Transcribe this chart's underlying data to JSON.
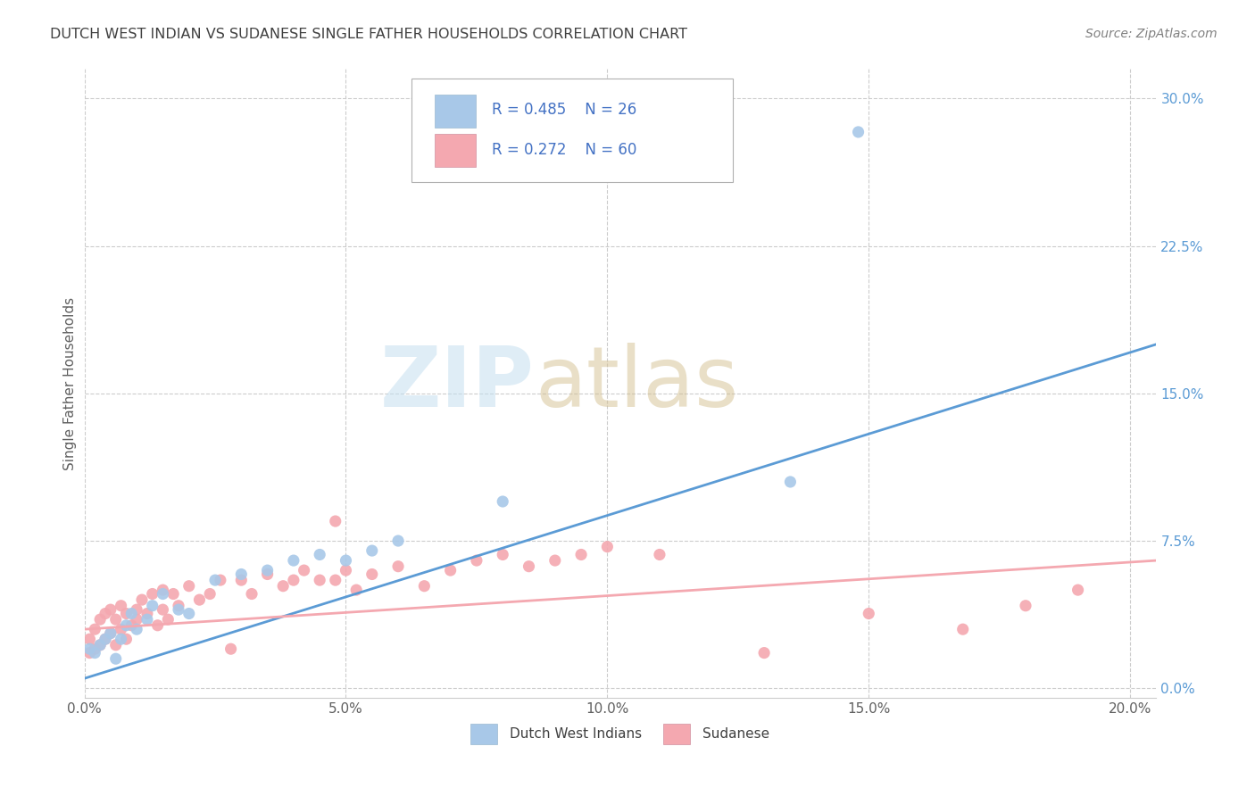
{
  "title": "DUTCH WEST INDIAN VS SUDANESE SINGLE FATHER HOUSEHOLDS CORRELATION CHART",
  "source": "Source: ZipAtlas.com",
  "ylabel": "Single Father Households",
  "xlim": [
    0.0,
    0.205
  ],
  "ylim": [
    -0.005,
    0.315
  ],
  "xticks": [
    0.0,
    0.05,
    0.1,
    0.15,
    0.2
  ],
  "yticks_right": [
    0.0,
    0.075,
    0.15,
    0.225,
    0.3
  ],
  "legend_labels": [
    "Dutch West Indians",
    "Sudanese"
  ],
  "legend_r_blue": "R = 0.485",
  "legend_n_blue": "N = 26",
  "legend_r_pink": "R = 0.272",
  "legend_n_pink": "N = 60",
  "blue_scatter_color": "#a8c8e8",
  "pink_scatter_color": "#f4a8b0",
  "line_blue_color": "#5b9bd5",
  "line_pink_color": "#f4a8b0",
  "legend_text_color": "#4472c4",
  "watermark_zip_color": "#c8dff0",
  "watermark_atlas_color": "#d8c8a0",
  "background_color": "#ffffff",
  "grid_color": "#cccccc",
  "title_color": "#404040",
  "source_color": "#808080",
  "ylabel_color": "#606060",
  "tick_color": "#5b9bd5",
  "xtick_color": "#606060",
  "blue_line_x0": 0.0,
  "blue_line_y0": 0.005,
  "blue_line_x1": 0.205,
  "blue_line_y1": 0.175,
  "pink_line_x0": 0.0,
  "pink_line_y0": 0.03,
  "pink_line_x1": 0.205,
  "pink_line_y1": 0.065,
  "blue_x": [
    0.001,
    0.002,
    0.003,
    0.004,
    0.005,
    0.006,
    0.007,
    0.008,
    0.009,
    0.01,
    0.012,
    0.013,
    0.015,
    0.018,
    0.02,
    0.025,
    0.03,
    0.035,
    0.04,
    0.045,
    0.05,
    0.055,
    0.06,
    0.08,
    0.135,
    0.148
  ],
  "blue_y": [
    0.02,
    0.018,
    0.022,
    0.025,
    0.028,
    0.015,
    0.025,
    0.032,
    0.038,
    0.03,
    0.035,
    0.042,
    0.048,
    0.04,
    0.038,
    0.055,
    0.058,
    0.06,
    0.065,
    0.068,
    0.065,
    0.07,
    0.075,
    0.095,
    0.105,
    0.283
  ],
  "pink_x": [
    0.001,
    0.001,
    0.002,
    0.002,
    0.003,
    0.003,
    0.004,
    0.004,
    0.005,
    0.005,
    0.006,
    0.006,
    0.007,
    0.007,
    0.008,
    0.008,
    0.009,
    0.01,
    0.01,
    0.011,
    0.012,
    0.013,
    0.014,
    0.015,
    0.015,
    0.016,
    0.017,
    0.018,
    0.02,
    0.022,
    0.024,
    0.026,
    0.028,
    0.03,
    0.032,
    0.035,
    0.038,
    0.04,
    0.042,
    0.045,
    0.048,
    0.05,
    0.052,
    0.055,
    0.06,
    0.065,
    0.07,
    0.075,
    0.08,
    0.085,
    0.09,
    0.095,
    0.1,
    0.11,
    0.048,
    0.13,
    0.15,
    0.168,
    0.18,
    0.19
  ],
  "pink_y": [
    0.018,
    0.025,
    0.02,
    0.03,
    0.022,
    0.035,
    0.025,
    0.038,
    0.028,
    0.04,
    0.022,
    0.035,
    0.03,
    0.042,
    0.025,
    0.038,
    0.032,
    0.04,
    0.035,
    0.045,
    0.038,
    0.048,
    0.032,
    0.04,
    0.05,
    0.035,
    0.048,
    0.042,
    0.052,
    0.045,
    0.048,
    0.055,
    0.02,
    0.055,
    0.048,
    0.058,
    0.052,
    0.055,
    0.06,
    0.055,
    0.085,
    0.06,
    0.05,
    0.058,
    0.062,
    0.052,
    0.06,
    0.065,
    0.068,
    0.062,
    0.065,
    0.068,
    0.072,
    0.068,
    0.055,
    0.018,
    0.038,
    0.03,
    0.042,
    0.05
  ]
}
